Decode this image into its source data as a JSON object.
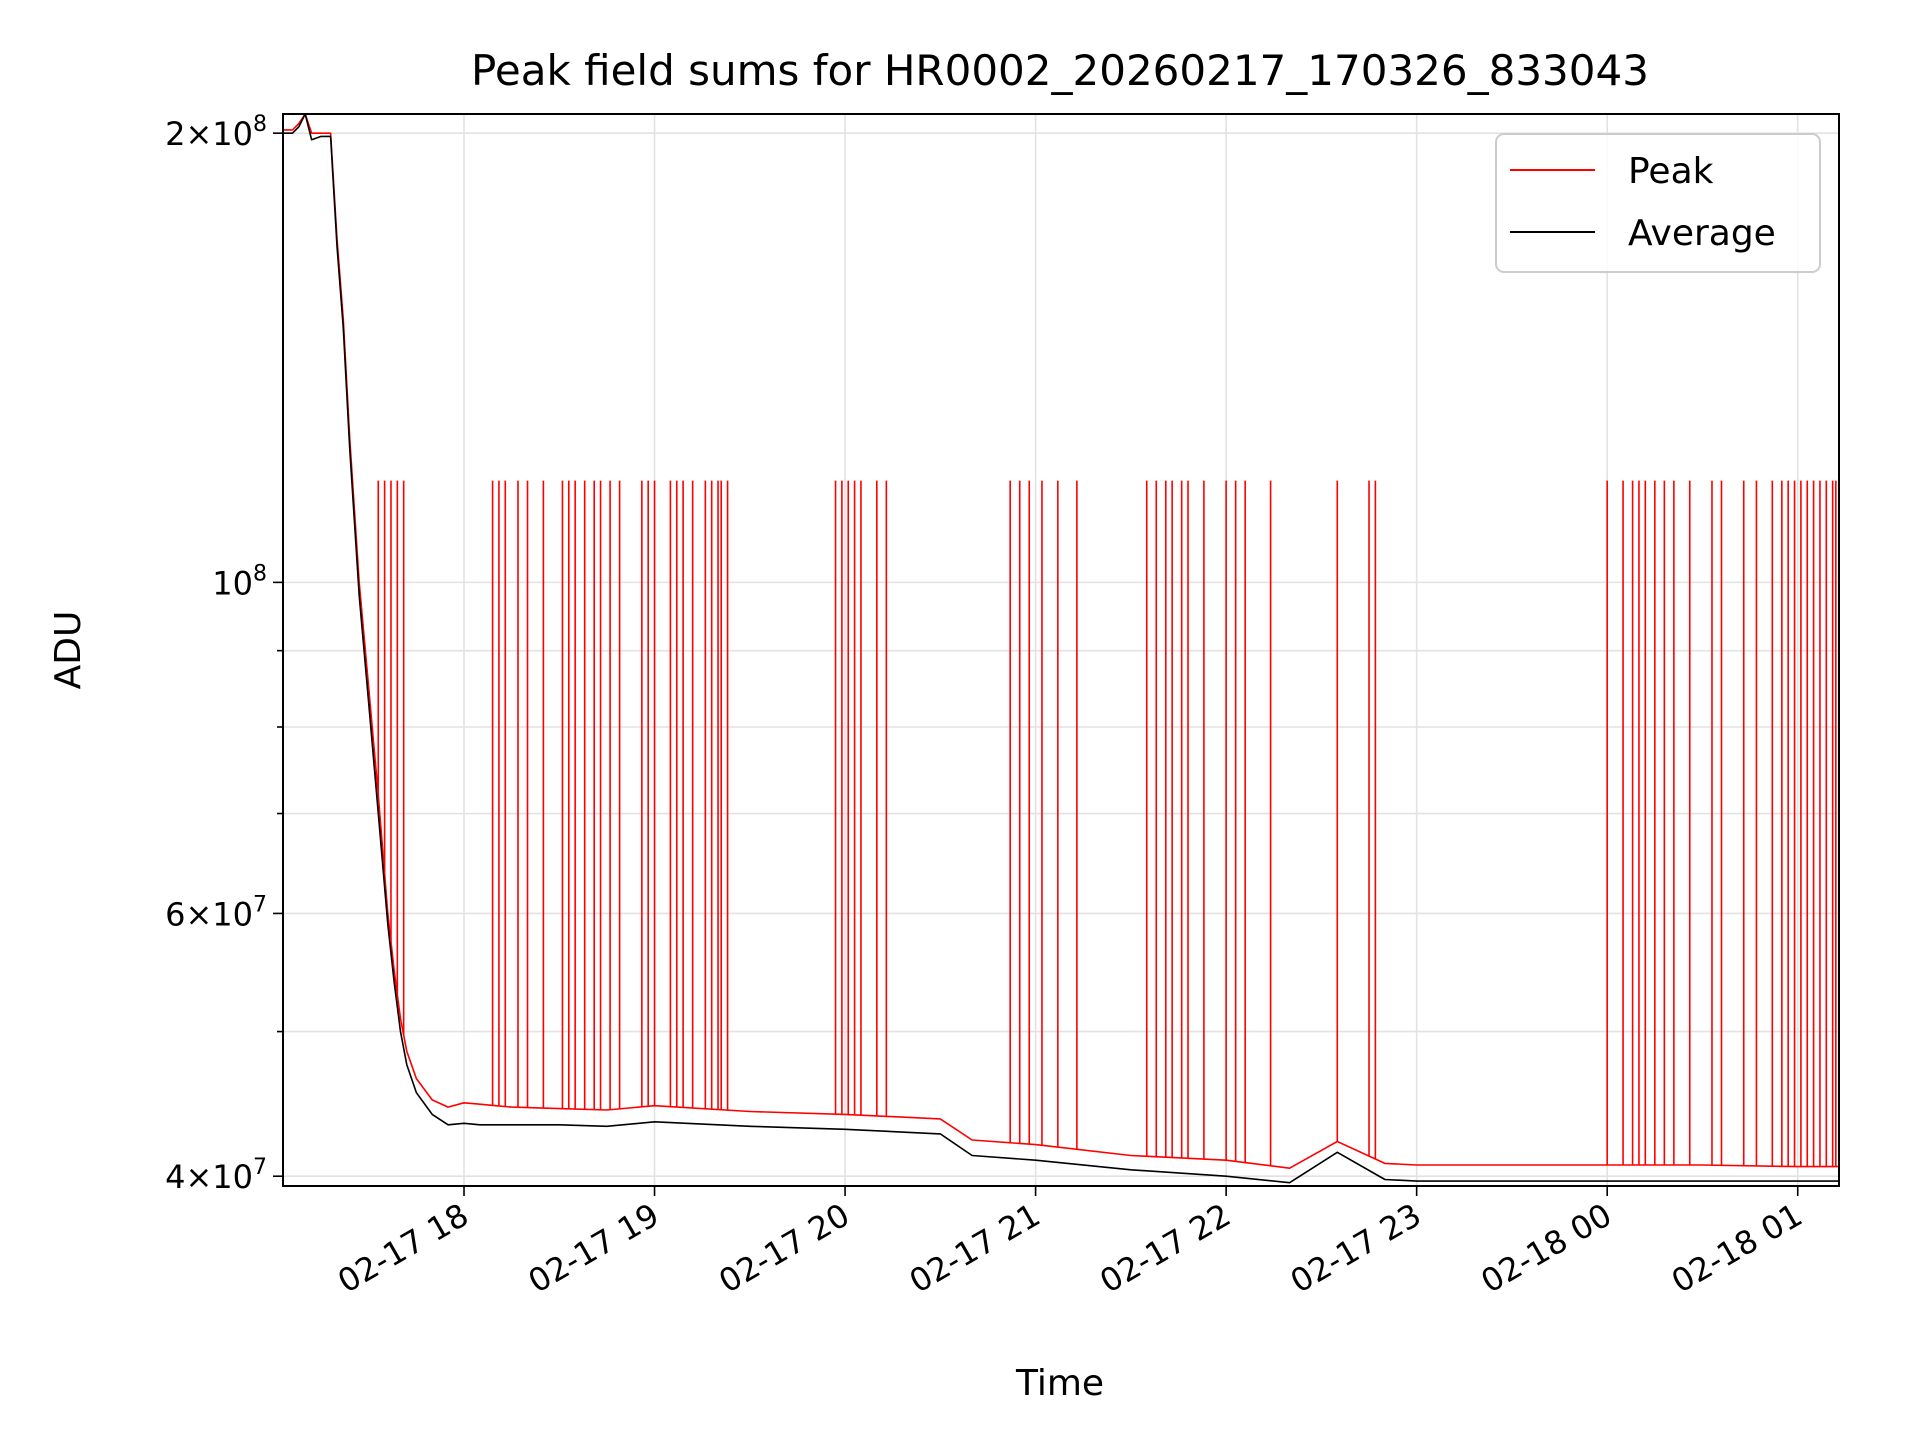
{
  "chart_data": {
    "type": "line",
    "title": "Peak field sums for HR0002_20260217_170326_833043",
    "xlabel": "Time",
    "ylabel": "ADU",
    "yscale": "log",
    "ylim": [
      39400000,
      206000000
    ],
    "xlim": [
      "2026-02-17T17:03",
      "2026-02-18T01:13"
    ],
    "grid": true,
    "legend": "top-right",
    "x_ticks": [
      "02-17 18",
      "02-17 19",
      "02-17 20",
      "02-17 21",
      "02-17 22",
      "02-17 23",
      "02-18 00",
      "02-18 01"
    ],
    "y_ticks": [
      {
        "mantissa": "2",
        "exp": "8"
      },
      {
        "mantissa": "",
        "exp": "8"
      },
      {
        "mantissa": "6",
        "exp": "7"
      },
      {
        "mantissa": "4",
        "exp": "7"
      }
    ],
    "series": [
      {
        "name": "Peak",
        "color": "#ff0000",
        "x": [
          "2026-02-17T17:03",
          "2026-02-17T17:06",
          "2026-02-17T17:08",
          "2026-02-17T17:10",
          "2026-02-17T17:12",
          "2026-02-17T17:15",
          "2026-02-17T17:18",
          "2026-02-17T17:20",
          "2026-02-17T17:22",
          "2026-02-17T17:24",
          "2026-02-17T17:27",
          "2026-02-17T17:30",
          "2026-02-17T17:33",
          "2026-02-17T17:36",
          "2026-02-17T17:38",
          "2026-02-17T17:40",
          "2026-02-17T17:42",
          "2026-02-17T17:45",
          "2026-02-17T17:50",
          "2026-02-17T17:55",
          "2026-02-17T18:00",
          "2026-02-17T18:05",
          "2026-02-17T18:10",
          "2026-02-17T18:15",
          "2026-02-17T18:30",
          "2026-02-17T18:45",
          "2026-02-17T19:00",
          "2026-02-17T19:30",
          "2026-02-17T20:00",
          "2026-02-17T20:30",
          "2026-02-17T20:40",
          "2026-02-17T21:00",
          "2026-02-17T21:30",
          "2026-02-17T22:00",
          "2026-02-17T22:20",
          "2026-02-17T22:35",
          "2026-02-17T22:50",
          "2026-02-17T23:00",
          "2026-02-17T23:30",
          "2026-02-18T00:00",
          "2026-02-18T00:30",
          "2026-02-18T01:00",
          "2026-02-18T01:13"
        ],
        "y": [
          201000000,
          201000000,
          203000000,
          206000000,
          200000000,
          200000000,
          200000000,
          170000000,
          150000000,
          125000000,
          100000000,
          85000000,
          72000000,
          60000000,
          55000000,
          51000000,
          48500000,
          46500000,
          45000000,
          44500000,
          44800000,
          44700000,
          44600000,
          44500000,
          44400000,
          44300000,
          44600000,
          44200000,
          44000000,
          43700000,
          42300000,
          42000000,
          41300000,
          41000000,
          40500000,
          42200000,
          40800000,
          40700000,
          40700000,
          40700000,
          40700000,
          40600000,
          40600000
        ]
      },
      {
        "name": "Average",
        "color": "#000000",
        "x": [
          "2026-02-17T17:03",
          "2026-02-17T17:06",
          "2026-02-17T17:08",
          "2026-02-17T17:10",
          "2026-02-17T17:12",
          "2026-02-17T17:15",
          "2026-02-17T17:18",
          "2026-02-17T17:20",
          "2026-02-17T17:22",
          "2026-02-17T17:24",
          "2026-02-17T17:27",
          "2026-02-17T17:30",
          "2026-02-17T17:33",
          "2026-02-17T17:36",
          "2026-02-17T17:38",
          "2026-02-17T17:40",
          "2026-02-17T17:42",
          "2026-02-17T17:45",
          "2026-02-17T17:50",
          "2026-02-17T17:55",
          "2026-02-17T18:00",
          "2026-02-17T18:05",
          "2026-02-17T18:10",
          "2026-02-17T18:15",
          "2026-02-17T18:30",
          "2026-02-17T18:45",
          "2026-02-17T19:00",
          "2026-02-17T19:30",
          "2026-02-17T20:00",
          "2026-02-17T20:30",
          "2026-02-17T20:40",
          "2026-02-17T21:00",
          "2026-02-17T21:30",
          "2026-02-17T22:00",
          "2026-02-17T22:20",
          "2026-02-17T22:35",
          "2026-02-17T22:50",
          "2026-02-17T23:00",
          "2026-02-17T23:30",
          "2026-02-18T00:00",
          "2026-02-18T00:30",
          "2026-02-18T01:00",
          "2026-02-18T01:13"
        ],
        "y": [
          200000000,
          200000000,
          202000000,
          206000000,
          198000000,
          199000000,
          199000000,
          168000000,
          148000000,
          123000000,
          98000000,
          83000000,
          70000000,
          59000000,
          54000000,
          50000000,
          47500000,
          45500000,
          44000000,
          43300000,
          43400000,
          43300000,
          43300000,
          43300000,
          43300000,
          43200000,
          43500000,
          43200000,
          43000000,
          42700000,
          41300000,
          41000000,
          40400000,
          40000000,
          39600000,
          41500000,
          39800000,
          39700000,
          39700000,
          39700000,
          39700000,
          39700000,
          39700000
        ]
      }
    ],
    "peak_spikes": {
      "value": 117000000,
      "x": [
        "2026-02-17T17:33",
        "2026-02-17T17:35",
        "2026-02-17T17:37",
        "2026-02-17T17:39",
        "2026-02-17T17:41",
        "2026-02-17T18:09",
        "2026-02-17T18:11",
        "2026-02-17T18:13",
        "2026-02-17T18:17",
        "2026-02-17T18:20",
        "2026-02-17T18:25",
        "2026-02-17T18:31",
        "2026-02-17T18:33",
        "2026-02-17T18:35",
        "2026-02-17T18:38",
        "2026-02-17T18:41",
        "2026-02-17T18:43",
        "2026-02-17T18:46",
        "2026-02-17T18:49",
        "2026-02-17T18:56",
        "2026-02-17T18:58",
        "2026-02-17T19:00",
        "2026-02-17T19:05",
        "2026-02-17T19:07",
        "2026-02-17T19:09",
        "2026-02-17T19:12",
        "2026-02-17T19:16",
        "2026-02-17T19:18",
        "2026-02-17T19:20",
        "2026-02-17T19:21",
        "2026-02-17T19:23",
        "2026-02-17T19:57",
        "2026-02-17T19:59",
        "2026-02-17T20:01",
        "2026-02-17T20:03",
        "2026-02-17T20:05",
        "2026-02-17T20:10",
        "2026-02-17T20:13",
        "2026-02-17T20:52",
        "2026-02-17T20:55",
        "2026-02-17T20:58",
        "2026-02-17T21:02",
        "2026-02-17T21:07",
        "2026-02-17T21:13",
        "2026-02-17T21:35",
        "2026-02-17T21:38",
        "2026-02-17T21:41",
        "2026-02-17T21:43",
        "2026-02-17T21:46",
        "2026-02-17T21:48",
        "2026-02-17T21:53",
        "2026-02-17T22:00",
        "2026-02-17T22:03",
        "2026-02-17T22:06",
        "2026-02-17T22:14",
        "2026-02-17T22:35",
        "2026-02-17T22:45",
        "2026-02-17T22:47",
        "2026-02-18T00:00",
        "2026-02-18T00:05",
        "2026-02-18T00:08",
        "2026-02-18T00:10",
        "2026-02-18T00:12",
        "2026-02-18T00:15",
        "2026-02-18T00:18",
        "2026-02-18T00:21",
        "2026-02-18T00:26",
        "2026-02-18T00:33",
        "2026-02-18T00:36",
        "2026-02-18T00:43",
        "2026-02-18T00:47",
        "2026-02-18T00:52",
        "2026-02-18T00:55",
        "2026-02-18T00:57",
        "2026-02-18T00:59",
        "2026-02-18T01:01",
        "2026-02-18T01:03",
        "2026-02-18T01:05",
        "2026-02-18T01:07",
        "2026-02-18T01:09",
        "2026-02-18T01:11",
        "2026-02-18T01:12"
      ]
    }
  }
}
